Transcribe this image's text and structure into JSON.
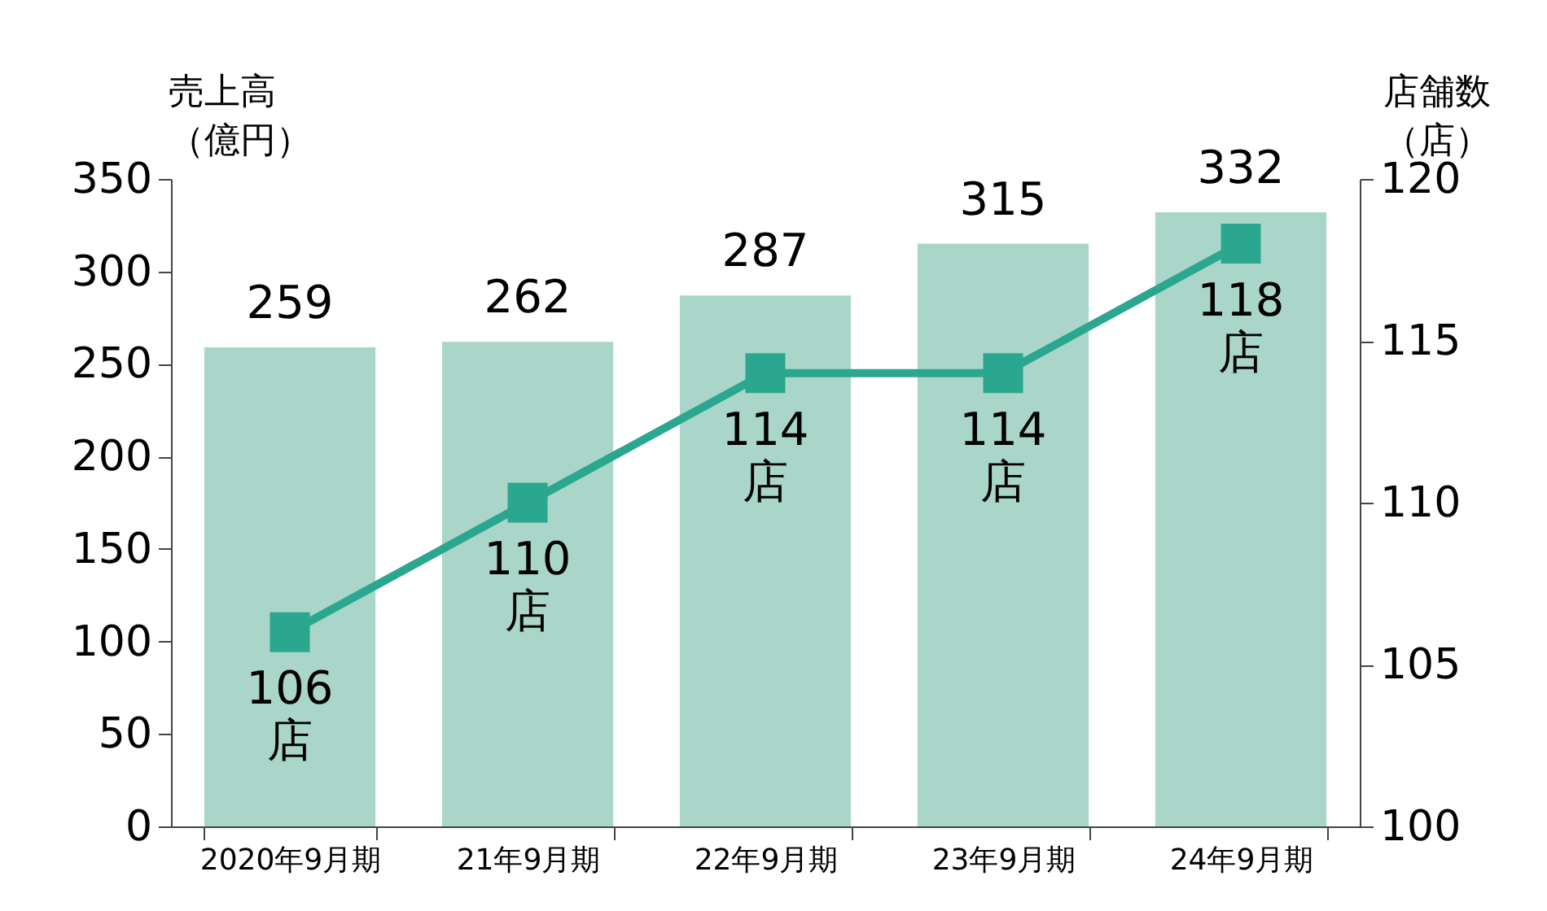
{
  "chart_data": {
    "type": "bar",
    "categories": [
      "2020年9月期",
      "21年9月期",
      "22年9月期",
      "23年9月期",
      "24年9月期"
    ],
    "ylabel": "売上高（億円）",
    "y2label": "店舗数（店）",
    "ylim": [
      0,
      350
    ],
    "yticks": [
      0,
      50,
      100,
      150,
      200,
      250,
      300,
      350
    ],
    "y2lim": [
      100,
      120
    ],
    "y2ticks": [
      100,
      105,
      110,
      115,
      120
    ],
    "grid": false,
    "series": [
      {
        "color": "#a9d6c9",
        "values": [
          259,
          262,
          287,
          315,
          332
        ],
        "data_labels": true
      },
      {
        "type": "line",
        "axis": "y2",
        "color": "#2ba68f",
        "marker": "square",
        "line_style": "solid",
        "values": [
          106,
          110,
          114,
          114,
          118
        ],
        "value_labels": [
          "106\n店",
          "110\n店",
          "114\n店",
          "114\n店",
          "118\n店"
        ]
      }
    ]
  }
}
